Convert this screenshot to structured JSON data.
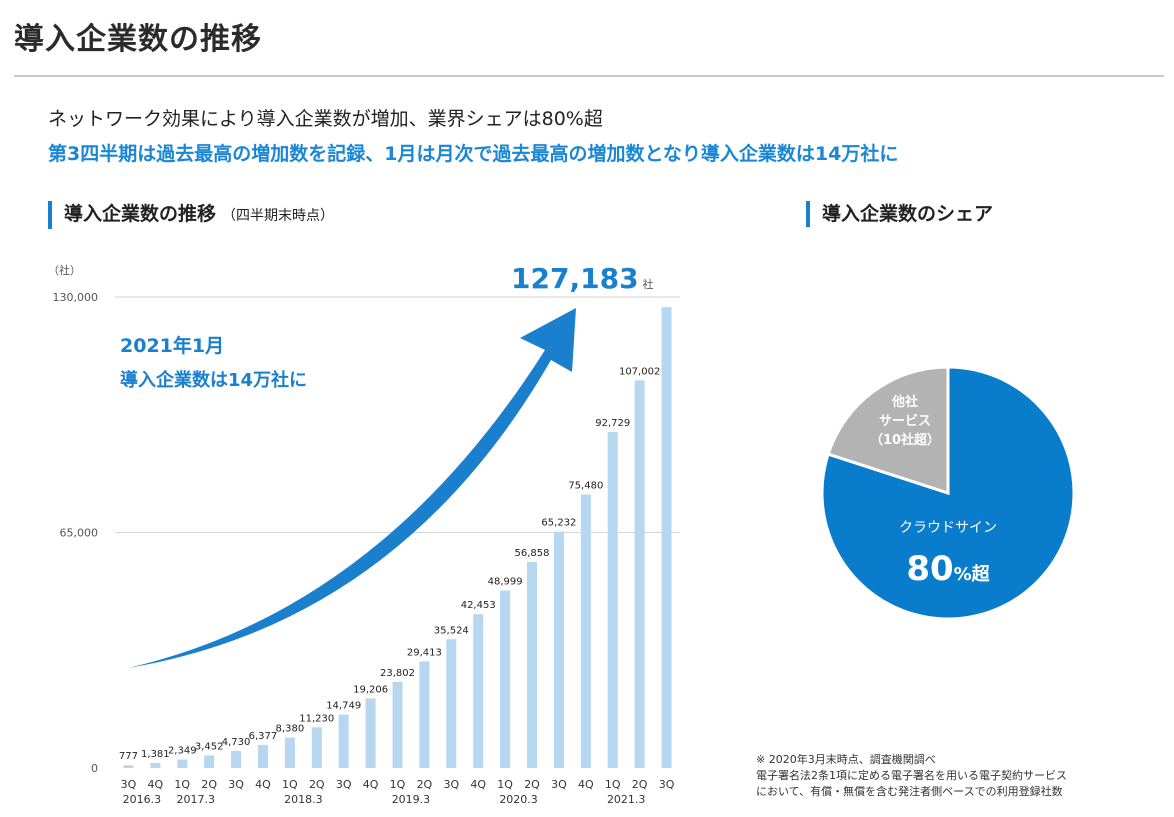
{
  "header": {
    "title": "導入企業数の推移"
  },
  "summary": {
    "lead": "ネットワーク効果により導入企業数が増加、業界シェアは80%超",
    "highlight": "第3四半期は過去最高の増加数を記録、1月は月次で過去最高の増加数となり導入企業数は14万社に"
  },
  "trend_section": {
    "title": "導入企業数の推移",
    "subtitle": "（四半期末時点）"
  },
  "share_section": {
    "title": "導入企業数のシェア"
  },
  "chart_data": [
    {
      "type": "bar",
      "y_unit": "（社）",
      "ylim": [
        0,
        130000
      ],
      "y_ticks": [
        "0",
        "65,000",
        "130,000"
      ],
      "y_tick_values": [
        0,
        65000,
        130000
      ],
      "categories": [
        "3Q",
        "4Q",
        "1Q",
        "2Q",
        "3Q",
        "4Q",
        "1Q",
        "2Q",
        "3Q",
        "4Q",
        "1Q",
        "2Q",
        "3Q",
        "4Q",
        "1Q",
        "2Q",
        "3Q",
        "4Q",
        "1Q",
        "2Q",
        "3Q"
      ],
      "fiscal_years": [
        {
          "label": "2016.3",
          "index": 0.5
        },
        {
          "label": "2017.3",
          "index": 2.5
        },
        {
          "label": "2018.3",
          "index": 6.5
        },
        {
          "label": "2019.3",
          "index": 10.5
        },
        {
          "label": "2020.3",
          "index": 14.5
        },
        {
          "label": "2021.3",
          "index": 18.5
        }
      ],
      "values": [
        777,
        1381,
        2349,
        3452,
        4730,
        6377,
        8380,
        11230,
        14749,
        19206,
        23802,
        29413,
        35524,
        42453,
        48999,
        56858,
        65232,
        75480,
        92729,
        107002,
        127183
      ],
      "value_labels": [
        "777",
        "1,381",
        "2,349",
        "3,452",
        "4,730",
        "6,377",
        "8,380",
        "11,230",
        "14,749",
        "19,206",
        "23,802",
        "29,413",
        "35,524",
        "42,453",
        "48,999",
        "56,858",
        "65,232",
        "75,480",
        "92,729",
        "107,002",
        ""
      ],
      "final_label": "127,183",
      "final_label_unit": "社",
      "bar_color": "#b6d7ef",
      "arrow_color": "#1a7fcc",
      "annotation": [
        "2021年1月",
        "導入企業数は14万社に"
      ],
      "grid": true
    },
    {
      "type": "pie",
      "slices": [
        {
          "name": "クラウドサイン",
          "value": 80,
          "color": "#0a7ccc",
          "value_text": "80",
          "value_suffix": "%超"
        },
        {
          "name": "他社サービス（10社超）",
          "value": 20,
          "color": "#b3b3b3",
          "lines": [
            "他社",
            "サービス",
            "（10社超）"
          ]
        }
      ]
    }
  ],
  "footnote": {
    "lines": [
      "※ 2020年3月末時点、調査機関調べ",
      "電子署名法2条1項に定める電子署名を用いる電子契約サービス",
      "において、有償・無償を含む発注者側ベースでの利用登録社数"
    ]
  }
}
